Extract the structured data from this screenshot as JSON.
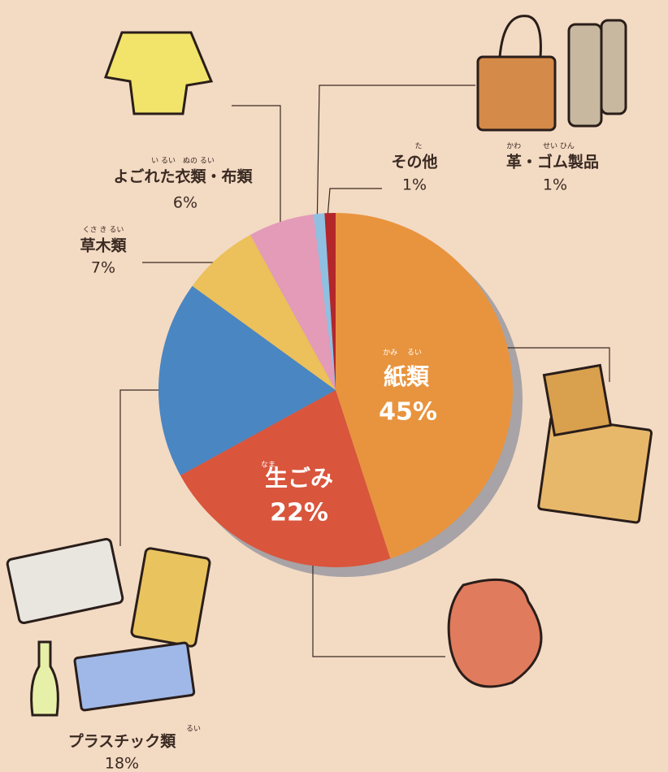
{
  "chart_data": {
    "type": "pie",
    "categories": [
      "紙類",
      "生ごみ",
      "プラスチック類",
      "草木類",
      "よごれた衣類・布類",
      "その他",
      "革・ゴム製品"
    ],
    "furigana": [
      "かみ　 るい",
      "なま",
      "るい",
      "くさ き るい",
      "い るい　ぬの るい",
      "た",
      "かわ　　　せい ひん"
    ],
    "values": [
      45,
      22,
      18,
      7,
      6,
      1,
      1
    ],
    "value_labels": [
      "45%",
      "22%",
      "18%",
      "7%",
      "6%",
      "1%",
      "1%"
    ],
    "colors": [
      "#e8943e",
      "#d9553c",
      "#4a86c2",
      "#ecc05a",
      "#e39bb8",
      "#8fc0e2",
      "#b3262a"
    ]
  }
}
